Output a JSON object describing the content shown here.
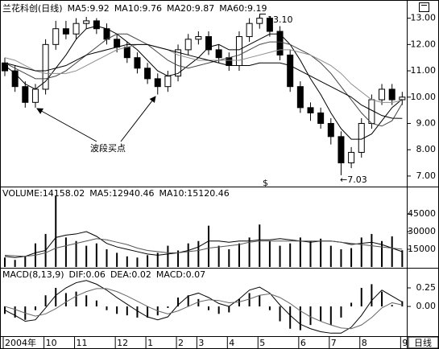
{
  "chart_data": [
    {
      "type": "candlestick",
      "title": "兰花科创(日线)",
      "categories": [
        "2004年",
        null,
        null,
        null,
        "10",
        null,
        null,
        "11",
        null,
        null,
        null,
        "12",
        null,
        null,
        "1",
        null,
        null,
        "2",
        null,
        "3",
        null,
        null,
        "4",
        null,
        null,
        "5",
        null,
        null,
        null,
        "6",
        null,
        null,
        "7",
        null,
        null,
        "8",
        null,
        null,
        null,
        "9"
      ],
      "open": [
        11.3,
        11.0,
        10.4,
        9.8,
        10.3,
        12.0,
        12.6,
        12.4,
        12.8,
        12.9,
        12.6,
        12.2,
        11.9,
        11.5,
        11.1,
        10.7,
        10.4,
        10.8,
        11.8,
        12.2,
        12.3,
        11.8,
        11.5,
        11.2,
        12.3,
        12.8,
        13.0,
        12.5,
        11.6,
        10.4,
        9.6,
        9.4,
        9.0,
        8.5,
        7.5,
        7.9,
        9.0,
        9.9,
        10.3,
        9.9
      ],
      "high": [
        11.5,
        11.2,
        10.6,
        10.5,
        12.2,
        12.9,
        12.9,
        13.0,
        13.05,
        13.0,
        12.8,
        12.4,
        12.1,
        11.7,
        11.3,
        10.9,
        11.0,
        12.0,
        12.4,
        12.5,
        12.5,
        12.0,
        11.7,
        12.5,
        13.0,
        13.1,
        13.05,
        12.7,
        11.8,
        10.6,
        9.8,
        9.6,
        9.2,
        8.7,
        8.1,
        9.2,
        10.1,
        10.5,
        10.5,
        10.2
      ],
      "low": [
        10.8,
        10.2,
        9.6,
        9.6,
        10.1,
        11.8,
        12.2,
        12.2,
        12.6,
        12.4,
        12.0,
        11.7,
        11.3,
        10.9,
        10.5,
        10.1,
        10.2,
        10.6,
        11.6,
        12.0,
        11.6,
        11.3,
        11.0,
        11.0,
        12.1,
        12.6,
        12.3,
        11.4,
        10.2,
        9.4,
        9.1,
        8.8,
        8.2,
        7.03,
        7.3,
        7.7,
        8.8,
        9.7,
        9.7,
        9.7
      ],
      "close": [
        11.0,
        10.4,
        9.8,
        10.3,
        12.0,
        12.6,
        12.4,
        12.8,
        12.9,
        12.6,
        12.2,
        11.9,
        11.5,
        11.1,
        10.7,
        10.4,
        10.8,
        11.8,
        12.2,
        12.3,
        11.8,
        11.5,
        11.2,
        12.3,
        12.8,
        13.0,
        12.5,
        11.6,
        10.4,
        9.6,
        9.4,
        9.0,
        8.5,
        7.5,
        7.9,
        9.0,
        9.9,
        10.3,
        9.9,
        10.0
      ],
      "color": "#000000",
      "series": [
        {
          "name": "MA5:9.92",
          "color": "#000000",
          "values": [
            11.2,
            10.9,
            10.5,
            10.3,
            10.6,
            11.1,
            11.6,
            12.2,
            12.6,
            12.7,
            12.6,
            12.4,
            12.1,
            11.8,
            11.4,
            11.0,
            10.8,
            10.9,
            11.2,
            11.5,
            11.9,
            12.0,
            11.8,
            11.8,
            12.0,
            12.2,
            12.4,
            12.4,
            12.0,
            11.4,
            10.7,
            10.1,
            9.4,
            8.8,
            8.4,
            8.4,
            8.6,
            9.1,
            9.6,
            9.92
          ]
        },
        {
          "name": "MA10:9.76",
          "color": "#444444",
          "values": [
            11.3,
            11.1,
            10.9,
            10.7,
            10.7,
            10.8,
            11.0,
            11.3,
            11.6,
            11.9,
            12.2,
            12.4,
            12.4,
            12.2,
            12.0,
            11.7,
            11.4,
            11.2,
            11.1,
            11.2,
            11.3,
            11.4,
            11.5,
            11.6,
            11.8,
            12.0,
            12.1,
            12.1,
            12.0,
            11.8,
            11.6,
            11.3,
            10.9,
            10.4,
            9.9,
            9.4,
            9.0,
            8.9,
            9.1,
            9.76
          ]
        },
        {
          "name": "MA20:9.87",
          "color": "#8c8c8c",
          "values": [
            11.5,
            11.4,
            11.2,
            11.0,
            10.9,
            10.9,
            10.9,
            11.0,
            11.2,
            11.4,
            11.6,
            11.8,
            11.9,
            12.0,
            12.0,
            11.9,
            11.8,
            11.6,
            11.5,
            11.4,
            11.4,
            11.4,
            11.4,
            11.4,
            11.5,
            11.6,
            11.7,
            11.8,
            11.8,
            11.7,
            11.6,
            11.4,
            11.2,
            10.9,
            10.5,
            10.2,
            9.9,
            9.8,
            9.8,
            9.87
          ]
        },
        {
          "name": "MA60:9.19",
          "color": "#000000",
          "values": [
            11.3,
            11.2,
            11.1,
            11.0,
            11.0,
            11.1,
            11.2,
            11.4,
            11.6,
            11.7,
            11.8,
            11.9,
            12.0,
            12.0,
            12.0,
            11.9,
            11.8,
            11.7,
            11.6,
            11.5,
            11.4,
            11.3,
            11.2,
            11.2,
            11.2,
            11.3,
            11.3,
            11.3,
            11.2,
            11.0,
            10.8,
            10.6,
            10.4,
            10.2,
            10.0,
            9.7,
            9.5,
            9.3,
            9.2,
            9.19
          ]
        }
      ],
      "ylim": [
        6.6,
        13.6
      ],
      "yticks": [
        {
          "value": 7,
          "label": "7.00"
        },
        {
          "value": 8,
          "label": "8.00"
        },
        {
          "value": 9,
          "label": "9.00"
        },
        {
          "value": 10,
          "label": "10.00"
        },
        {
          "value": 11,
          "label": "11.00"
        },
        {
          "value": 12,
          "label": "12.00"
        },
        {
          "value": 13,
          "label": "13.00"
        }
      ],
      "annotations": [
        "13.10",
        "←7.03",
        "波段买点",
        "$"
      ]
    },
    {
      "type": "bar",
      "name": "VOLUME:14158.02",
      "color": "#000000",
      "values": [
        8000,
        6000,
        9000,
        20000,
        28000,
        60000,
        25000,
        22000,
        18000,
        20000,
        15000,
        12000,
        9000,
        8000,
        10000,
        12000,
        18000,
        14000,
        20000,
        22000,
        35000,
        18000,
        15000,
        20000,
        25000,
        36000,
        22000,
        18000,
        20000,
        25000,
        22000,
        24000,
        18000,
        15000,
        16000,
        25000,
        28000,
        22000,
        26000,
        14158.02
      ],
      "series": [
        {
          "name": "MA5:12940.46",
          "color": "#000000",
          "values": [
            9000,
            8000,
            9000,
            12000,
            14000,
            25000,
            27000,
            28000,
            30000,
            26000,
            20000,
            17000,
            15000,
            13000,
            11000,
            10000,
            11000,
            12000,
            14000,
            17000,
            22000,
            22000,
            21000,
            22000,
            22000,
            23000,
            23000,
            24000,
            23000,
            22000,
            21000,
            22000,
            22000,
            21000,
            19000,
            20000,
            21000,
            19000,
            16000,
            12940.46
          ]
        },
        {
          "name": "MA10:15120.46",
          "color": "#555555",
          "values": [
            10000,
            9500,
            9000,
            10000,
            12000,
            16000,
            18000,
            20000,
            22000,
            24000,
            23000,
            21000,
            19000,
            16000,
            14000,
            13000,
            12000,
            12000,
            13000,
            14000,
            16000,
            17000,
            18000,
            19000,
            21000,
            22000,
            22000,
            22000,
            22000,
            22000,
            22000,
            22000,
            22000,
            21000,
            20000,
            19000,
            18000,
            17000,
            16000,
            15120.46
          ]
        }
      ],
      "ylim": [
        0,
        67500
      ],
      "yticks": [
        15000,
        30000,
        45000
      ]
    },
    {
      "type": "bar",
      "title": "MACD(8,13,9)",
      "name": "MACD:0.07",
      "color": "#000000",
      "values": [
        -0.1,
        -0.15,
        -0.18,
        -0.05,
        0.15,
        0.25,
        0.18,
        0.2,
        0.15,
        0.08,
        -0.05,
        -0.1,
        -0.12,
        -0.15,
        -0.15,
        -0.12,
        -0.02,
        0.12,
        0.15,
        0.1,
        -0.05,
        -0.1,
        -0.08,
        0.1,
        0.18,
        0.15,
        -0.05,
        -0.2,
        -0.3,
        -0.32,
        -0.25,
        -0.2,
        -0.25,
        -0.15,
        0.05,
        0.25,
        0.3,
        0.2,
        0.02,
        0.07
      ],
      "series": [
        {
          "name": "DIF:0.06",
          "color": "#000000",
          "values": [
            -0.05,
            -0.12,
            -0.2,
            -0.18,
            -0.02,
            0.15,
            0.25,
            0.32,
            0.35,
            0.3,
            0.22,
            0.12,
            0.03,
            -0.06,
            -0.14,
            -0.18,
            -0.14,
            0.02,
            0.14,
            0.18,
            0.12,
            0.04,
            0.0,
            0.1,
            0.22,
            0.26,
            0.18,
            0.02,
            -0.12,
            -0.24,
            -0.3,
            -0.34,
            -0.36,
            -0.36,
            -0.28,
            -0.12,
            0.08,
            0.22,
            0.14,
            0.06
          ]
        },
        {
          "name": "DEA:0.02",
          "color": "#666666",
          "values": [
            0.0,
            -0.04,
            -0.09,
            -0.13,
            -0.1,
            -0.03,
            0.06,
            0.14,
            0.2,
            0.24,
            0.24,
            0.2,
            0.14,
            0.07,
            0.0,
            -0.06,
            -0.1,
            -0.06,
            0.0,
            0.06,
            0.09,
            0.08,
            0.05,
            0.06,
            0.1,
            0.15,
            0.17,
            0.12,
            0.04,
            -0.06,
            -0.14,
            -0.2,
            -0.25,
            -0.29,
            -0.3,
            -0.25,
            -0.15,
            -0.02,
            0.05,
            0.02
          ]
        }
      ],
      "ylim": [
        -0.4,
        0.51
      ],
      "yticks": [
        {
          "value": 0,
          "label": "0.00"
        },
        {
          "value": 0.25,
          "label": "0.25"
        }
      ]
    }
  ],
  "toolbar": {
    "period": "日线"
  }
}
